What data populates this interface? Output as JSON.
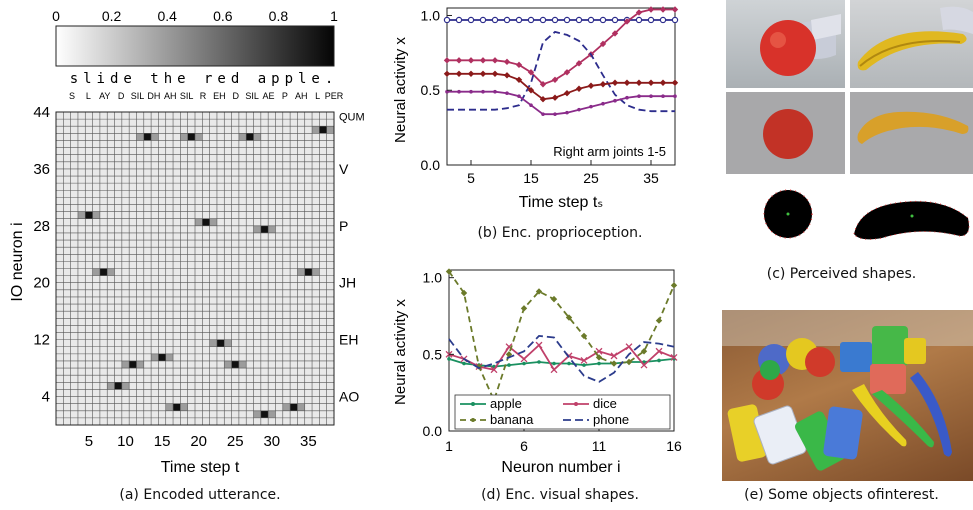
{
  "panel_a": {
    "colorbar_ticks": [
      "0",
      "0.2",
      "0.4",
      "0.6",
      "0.8",
      "1"
    ],
    "sentence": "slide the red apple.",
    "phonemes": [
      "S",
      "L",
      "AY",
      "D",
      "SIL",
      "DH",
      "AH",
      "SIL",
      "R",
      "EH",
      "D",
      "SIL",
      "AE",
      "P",
      "AH",
      "L",
      "PER"
    ],
    "right_labels": [
      "QUM",
      "V",
      "P",
      "JH",
      "EH",
      "AO"
    ],
    "ylabel": "IO neuron i",
    "xlabel": "Time step t",
    "yticks": [
      "4",
      "12",
      "20",
      "28",
      "36",
      "44"
    ],
    "xticks": [
      "5",
      "10",
      "15",
      "20",
      "25",
      "30",
      "35"
    ],
    "caption": "(a) Encoded utterance."
  },
  "panel_b": {
    "ylabel": "Neural activity x",
    "xlabel": "Time step tₛ",
    "annotation": "Right arm joints 1-5",
    "yticks": [
      "0.0",
      "0.5",
      "1.0"
    ],
    "xticks": [
      "5",
      "15",
      "25",
      "35"
    ],
    "caption": "(b) Enc. proprioception."
  },
  "panel_c": {
    "caption": "(c) Perceived shapes."
  },
  "panel_d": {
    "ylabel": "Neural activity x",
    "xlabel": "Neuron number i",
    "yticks": [
      "0.0",
      "0.5",
      "1.0"
    ],
    "xticks": [
      "1",
      "6",
      "11",
      "16"
    ],
    "legend": [
      "apple",
      "dice",
      "banana",
      "phone"
    ],
    "caption": "(d) Enc. visual shapes."
  },
  "panel_e": {
    "caption": "(e) Some objects ofinterest."
  },
  "chart_data": [
    {
      "type": "heatmap",
      "xlabel": "Time step t",
      "ylabel": "IO neuron i",
      "colorbar_range": [
        0,
        1
      ],
      "cells": [
        {
          "t": 13,
          "i": 41,
          "v": 1.0
        },
        {
          "t": 19,
          "i": 41,
          "v": 1.0
        },
        {
          "t": 27,
          "i": 41,
          "v": 1.0
        },
        {
          "t": 37,
          "i": 42,
          "v": 1.0
        },
        {
          "t": 5,
          "i": 30,
          "v": 1.0
        },
        {
          "t": 21,
          "i": 29,
          "v": 1.0
        },
        {
          "t": 29,
          "i": 28,
          "v": 1.0
        },
        {
          "t": 7,
          "i": 22,
          "v": 1.0
        },
        {
          "t": 35,
          "i": 22,
          "v": 1.0
        },
        {
          "t": 23,
          "i": 12,
          "v": 1.0
        },
        {
          "t": 15,
          "i": 10,
          "v": 1.0
        },
        {
          "t": 11,
          "i": 9,
          "v": 1.0
        },
        {
          "t": 25,
          "i": 9,
          "v": 1.0
        },
        {
          "t": 9,
          "i": 6,
          "v": 1.0
        },
        {
          "t": 17,
          "i": 3,
          "v": 1.0
        },
        {
          "t": 33,
          "i": 3,
          "v": 1.0
        },
        {
          "t": 29,
          "i": 2,
          "v": 1.0
        }
      ]
    },
    {
      "type": "line",
      "xlabel": "Time step tₛ",
      "ylabel": "Neural activity x",
      "xlim": [
        1,
        39
      ],
      "ylim": [
        0,
        1.05
      ],
      "x": [
        1,
        3,
        5,
        7,
        9,
        11,
        13,
        15,
        17,
        19,
        21,
        23,
        25,
        27,
        29,
        31,
        33,
        35,
        37,
        39
      ],
      "series": [
        {
          "color": "#2c2c8c",
          "values": [
            0.97,
            0.97,
            0.97,
            0.97,
            0.97,
            0.97,
            0.97,
            0.97,
            0.97,
            0.97,
            0.97,
            0.97,
            0.97,
            0.97,
            0.97,
            0.97,
            0.97,
            0.97,
            0.97,
            0.97
          ]
        },
        {
          "color": "#b03060",
          "values": [
            0.7,
            0.7,
            0.7,
            0.7,
            0.7,
            0.69,
            0.67,
            0.62,
            0.54,
            0.57,
            0.62,
            0.68,
            0.74,
            0.81,
            0.88,
            0.96,
            1.02,
            1.04,
            1.04,
            1.04
          ]
        },
        {
          "color": "#2c2c8c",
          "values": [
            0.37,
            0.37,
            0.37,
            0.37,
            0.37,
            0.38,
            0.4,
            0.55,
            0.82,
            0.89,
            0.87,
            0.83,
            0.74,
            0.6,
            0.47,
            0.4,
            0.37,
            0.36,
            0.36,
            0.36
          ]
        },
        {
          "color": "#8b1a1a",
          "values": [
            0.61,
            0.61,
            0.61,
            0.61,
            0.61,
            0.6,
            0.57,
            0.5,
            0.44,
            0.45,
            0.48,
            0.51,
            0.53,
            0.54,
            0.55,
            0.55,
            0.55,
            0.55,
            0.55,
            0.55
          ]
        },
        {
          "color": "#8a2b8a",
          "values": [
            0.49,
            0.49,
            0.49,
            0.49,
            0.49,
            0.48,
            0.46,
            0.4,
            0.34,
            0.34,
            0.35,
            0.37,
            0.39,
            0.41,
            0.43,
            0.45,
            0.46,
            0.46,
            0.46,
            0.46
          ]
        }
      ]
    },
    {
      "type": "line",
      "xlabel": "Neuron number i",
      "ylabel": "Neural activity x",
      "xlim": [
        1,
        16
      ],
      "ylim": [
        0,
        1.05
      ],
      "x": [
        1,
        2,
        3,
        4,
        5,
        6,
        7,
        8,
        9,
        10,
        11,
        12,
        13,
        14,
        15,
        16
      ],
      "series": [
        {
          "name": "apple",
          "color": "#1a9060",
          "values": [
            0.47,
            0.44,
            0.43,
            0.42,
            0.43,
            0.44,
            0.45,
            0.44,
            0.44,
            0.43,
            0.44,
            0.44,
            0.45,
            0.45,
            0.46,
            0.47
          ]
        },
        {
          "name": "dice",
          "color": "#c0406a",
          "values": [
            0.5,
            0.47,
            0.42,
            0.4,
            0.55,
            0.47,
            0.56,
            0.4,
            0.49,
            0.46,
            0.52,
            0.49,
            0.55,
            0.43,
            0.52,
            0.48
          ]
        },
        {
          "name": "banana",
          "color": "#6b7a2a",
          "values": [
            1.04,
            0.9,
            0.42,
            0.2,
            0.5,
            0.8,
            0.91,
            0.86,
            0.74,
            0.62,
            0.48,
            0.44,
            0.45,
            0.52,
            0.72,
            0.95
          ]
        },
        {
          "name": "phone",
          "color": "#2c3c8c",
          "values": [
            0.6,
            0.47,
            0.41,
            0.44,
            0.48,
            0.52,
            0.62,
            0.61,
            0.48,
            0.36,
            0.32,
            0.38,
            0.5,
            0.58,
            0.57,
            0.55
          ]
        }
      ]
    }
  ]
}
